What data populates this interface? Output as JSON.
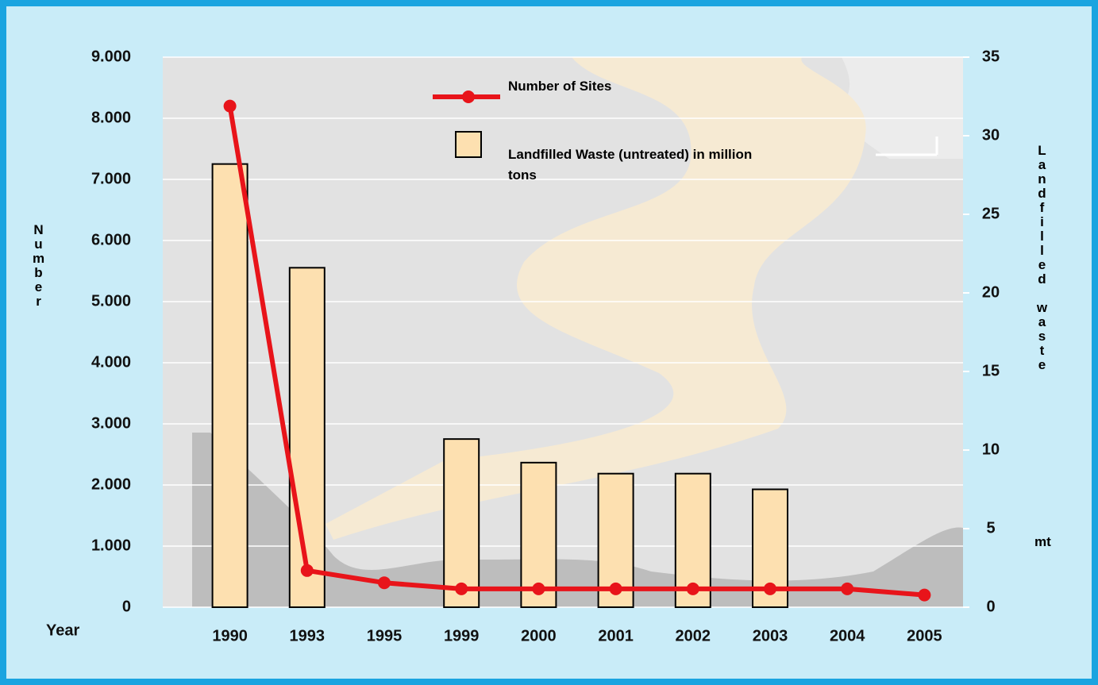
{
  "chart_data": {
    "type": "bar_line",
    "x_label": "Year",
    "y_label": "Number",
    "y2_label": "Landfilled waste",
    "y2_unit": "mt",
    "categories": [
      "1990",
      "1993",
      "1995",
      "1999",
      "2000",
      "2001",
      "2002",
      "2003",
      "2004",
      "2005"
    ],
    "series": [
      {
        "name": "Number of Sites",
        "type": "line",
        "color": "#e8141a",
        "axis": "y",
        "values": [
          8200,
          600,
          400,
          300,
          300,
          300,
          300,
          300,
          300,
          200
        ]
      },
      {
        "name": "Landfilled Waste (untreated) in million tons",
        "type": "bar",
        "color": "#fde0b0",
        "axis": "y2",
        "values": [
          28.2,
          21.6,
          null,
          10.7,
          9.2,
          8.5,
          8.5,
          7.5,
          null,
          null
        ]
      }
    ],
    "ylim": [
      0,
      9000
    ],
    "yticks": [
      0,
      {
        "value": 1000,
        "label": "1.000"
      },
      {
        "value": 2000,
        "label": "2.000"
      },
      {
        "value": 3000,
        "label": "3.000"
      },
      {
        "value": 4000,
        "label": "4.000"
      },
      {
        "value": 5000,
        "label": "5.000"
      },
      {
        "value": 6000,
        "label": "6.000"
      },
      {
        "value": 7000,
        "label": "7.000"
      },
      {
        "value": 8000,
        "label": "8.000"
      },
      {
        "value": 9000,
        "label": "9.000"
      }
    ],
    "y2lim": [
      0,
      35
    ],
    "y2ticks": [
      0,
      5,
      10,
      15,
      20,
      25,
      30,
      35
    ],
    "grid": true
  }
}
